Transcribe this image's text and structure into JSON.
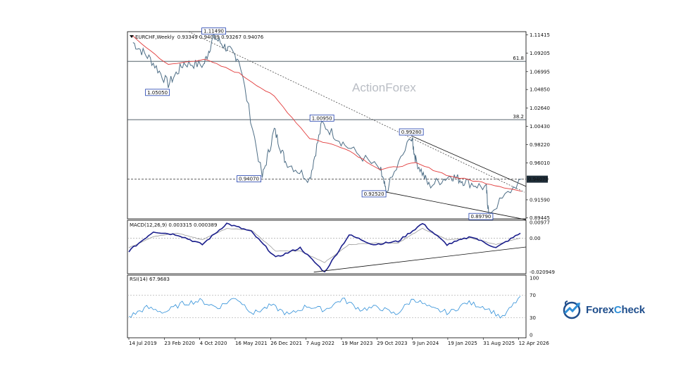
{
  "header": {
    "symbol": "EURCHF,Weekly",
    "ohlc": "0.93349 0.94089 0.93267 0.94076"
  },
  "watermark": "ActionForex",
  "logo": {
    "text_a": "Forex",
    "text_x": "C",
    "text_b": "heck",
    "icon": "bull-globe-logo-icon"
  },
  "price_axis": {
    "ticks": [
      "1.11415",
      "1.09205",
      "1.06995",
      "1.04850",
      "1.02640",
      "1.00430",
      "0.98220",
      "0.96010",
      "0.91590",
      "0.89445"
    ],
    "current_price": "0.94070"
  },
  "fib_levels": [
    {
      "label": "61.8",
      "price": 1.0823
    },
    {
      "label": "38.2",
      "price": 1.0122
    }
  ],
  "price_labels": [
    {
      "text": "1.11490",
      "price": 1.1149,
      "date": "2020-12-07"
    },
    {
      "text": "1.05050",
      "price": 1.0505,
      "date": "2019-12-16"
    },
    {
      "text": "1.00950",
      "price": 1.0095,
      "date": "2022-10-24"
    },
    {
      "text": "0.94070",
      "price": 0.9407,
      "date": "2021-10-11"
    },
    {
      "text": "0.99280",
      "price": 0.9928,
      "date": "2024-05-13"
    },
    {
      "text": "0.92520",
      "price": 0.9252,
      "date": "2023-12-04"
    },
    {
      "text": "0.89790",
      "price": 0.8979,
      "date": "2025-09-15"
    }
  ],
  "time_axis": [
    "14 Jul 2019",
    "23 Feb 2020",
    "4 Oct 2020",
    "16 May 2021",
    "26 Dec 2021",
    "7 Aug 2022",
    "19 Mar 2023",
    "29 Oct 2023",
    "9 Jun 2024",
    "19 Jan 2025",
    "31 Aug 2025",
    "12 Apr 2026"
  ],
  "macd": {
    "label": "MACD(12,26,9) 0.003315 0.000389",
    "ticks": [
      "0.00977",
      "0.00",
      "-0.020949"
    ]
  },
  "rsi": {
    "label": "RSI(14) 67.9683",
    "ticks": [
      "100",
      "70",
      "30",
      "0"
    ]
  },
  "colors": {
    "price": "#4e6e86",
    "ema": "#e23c3c",
    "macd_line": "#1b1f8c",
    "signal_line": "#9a9a9a",
    "rsi_line": "#2f8fd8",
    "label_box": "#1f3fae"
  },
  "chart_data": [
    {
      "type": "line",
      "title": "EURCHF,Weekly",
      "series": [
        {
          "name": "EURCHF",
          "x": [
            "2019-07-14",
            "2019-11-01",
            "2020-02-23",
            "2020-06-01",
            "2020-10-04",
            "2020-12-07",
            "2021-03-01",
            "2021-05-16",
            "2021-10-11",
            "2021-12-26",
            "2022-03-07",
            "2022-08-07",
            "2022-10-24",
            "2023-03-19",
            "2023-10-29",
            "2023-12-04",
            "2024-05-13",
            "2024-06-09",
            "2024-09-01",
            "2025-01-19",
            "2025-04-14",
            "2025-08-31",
            "2025-09-15",
            "2026-04-12"
          ],
          "values": [
            1.105,
            1.085,
            1.055,
            1.08,
            1.078,
            1.112,
            1.098,
            1.085,
            0.943,
            1.0,
            0.962,
            0.941,
            1.008,
            0.982,
            0.952,
            0.926,
            0.992,
            0.964,
            0.933,
            0.945,
            0.938,
            0.93,
            0.899,
            0.941
          ]
        },
        {
          "name": "EMA",
          "x": [
            "2019-07-14",
            "2020-02-23",
            "2020-10-04",
            "2021-05-16",
            "2021-12-26",
            "2022-08-07",
            "2023-03-19",
            "2023-10-29",
            "2024-06-09",
            "2025-01-19",
            "2025-08-31",
            "2026-04-12"
          ],
          "values": [
            1.112,
            1.078,
            1.085,
            1.068,
            1.04,
            0.99,
            0.978,
            0.952,
            0.96,
            0.944,
            0.936,
            0.926
          ]
        }
      ],
      "ylim": [
        0.893,
        1.118
      ],
      "grid": false
    },
    {
      "type": "line",
      "title": "MACD(12,26,9) 0.003315 0.000389",
      "series": [
        {
          "name": "MACD",
          "values": [
            -0.008,
            0.004,
            0.002,
            -0.004,
            0.009,
            0.004,
            -0.012,
            -0.006,
            -0.021,
            0.002,
            -0.004,
            -0.002,
            0.009,
            -0.004,
            0.001,
            -0.006,
            0.003
          ]
        },
        {
          "name": "Signal",
          "values": [
            -0.006,
            0.001,
            0.003,
            -0.001,
            0.006,
            0.005,
            -0.008,
            -0.008,
            -0.015,
            -0.004,
            -0.003,
            -0.003,
            0.006,
            -0.001,
            0.0,
            -0.004,
            0.0
          ]
        }
      ],
      "ylim": [
        -0.022,
        0.011
      ]
    },
    {
      "type": "line",
      "title": "RSI(14) 67.9683",
      "series": [
        {
          "name": "RSI",
          "values": [
            32,
            48,
            40,
            55,
            60,
            48,
            66,
            38,
            52,
            35,
            51,
            44,
            63,
            45,
            49,
            36,
            64,
            46,
            39,
            57,
            49,
            30,
            68
          ]
        }
      ],
      "ylim": [
        0,
        100
      ],
      "levels": [
        70,
        30
      ]
    }
  ]
}
